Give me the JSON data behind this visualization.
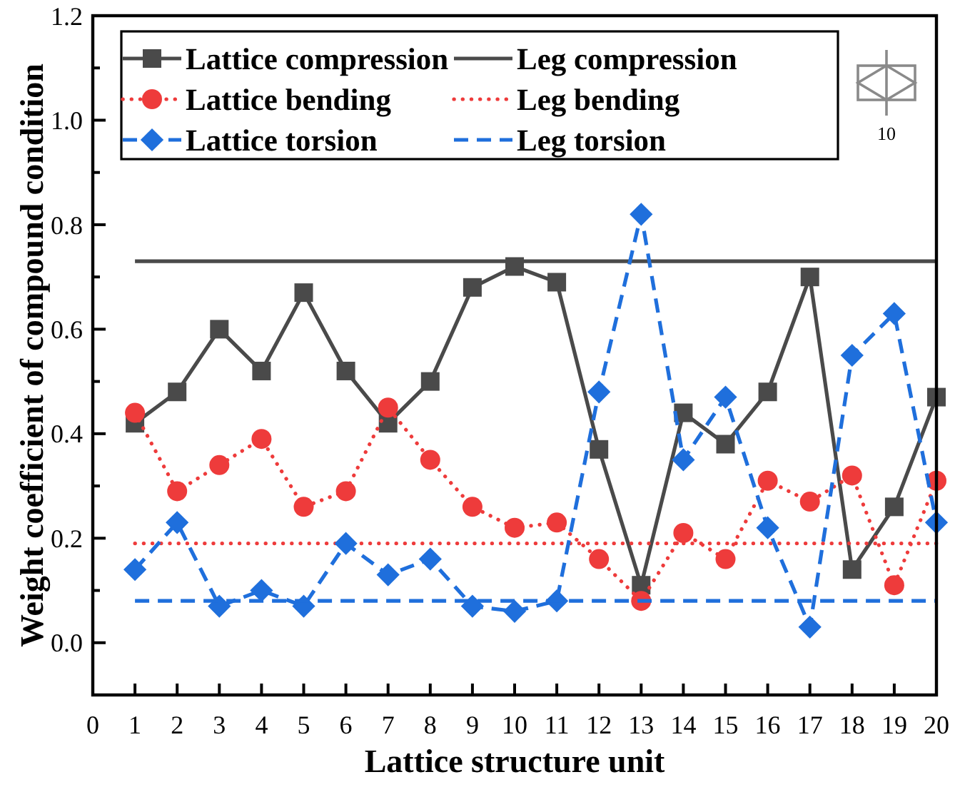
{
  "chart_data": {
    "type": "line",
    "xlabel": "Lattice structure unit",
    "ylabel": "Weight coefficient of compound condition",
    "annotations": [
      "10"
    ],
    "x": [
      1,
      2,
      3,
      4,
      5,
      6,
      7,
      8,
      9,
      10,
      11,
      12,
      13,
      14,
      15,
      16,
      17,
      18,
      19,
      20
    ],
    "xlim": [
      0,
      20
    ],
    "xticks": [
      0,
      1,
      2,
      3,
      4,
      5,
      6,
      7,
      8,
      9,
      10,
      11,
      12,
      13,
      14,
      15,
      16,
      17,
      18,
      19,
      20
    ],
    "ylim": [
      -0.1,
      1.2
    ],
    "yticks": [
      {
        "value": 0,
        "label": "0.0"
      },
      {
        "value": 0.1,
        "label": null
      },
      0.2,
      {
        "value": 0.3,
        "label": null
      },
      0.4,
      {
        "value": 0.5,
        "label": null
      },
      0.6,
      {
        "value": 0.7,
        "label": null
      },
      0.8,
      {
        "value": 0.9,
        "label": null
      },
      {
        "value": 1,
        "label": "1.0"
      },
      {
        "value": 1.1,
        "label": null
      },
      1.2
    ],
    "legend": "top left",
    "series": [
      {
        "name": "Lattice compression",
        "color": "#4a4a4a",
        "marker": "square",
        "line_style": "solid",
        "values": [
          0.42,
          0.48,
          0.6,
          0.52,
          0.67,
          0.52,
          0.42,
          0.5,
          0.68,
          0.72,
          0.69,
          0.37,
          0.11,
          0.44,
          0.38,
          0.48,
          0.7,
          0.14,
          0.26,
          0.47
        ]
      },
      {
        "name": "Leg compression",
        "color": "#4a4a4a",
        "marker": "none",
        "line_style": "solid",
        "values": [
          0.73,
          0.73,
          0.73,
          0.73,
          0.73,
          0.73,
          0.73,
          0.73,
          0.73,
          0.73,
          0.73,
          0.73,
          0.73,
          0.73,
          0.73,
          0.73,
          0.73,
          0.73,
          0.73,
          0.73
        ]
      },
      {
        "name": "Lattice bending",
        "color": "#ee3b3b",
        "marker": "circle",
        "line_style": "dotted",
        "values": [
          0.44,
          0.29,
          0.34,
          0.39,
          0.26,
          0.29,
          0.45,
          0.35,
          0.26,
          0.22,
          0.23,
          0.16,
          0.08,
          0.21,
          0.16,
          0.31,
          0.27,
          0.32,
          0.11,
          0.31
        ]
      },
      {
        "name": "Leg bending",
        "color": "#ee3b3b",
        "marker": "none",
        "line_style": "dotted",
        "values": [
          0.19,
          0.19,
          0.19,
          0.19,
          0.19,
          0.19,
          0.19,
          0.19,
          0.19,
          0.19,
          0.19,
          0.19,
          0.19,
          0.19,
          0.19,
          0.19,
          0.19,
          0.19,
          0.19,
          0.19
        ]
      },
      {
        "name": "Lattice torsion",
        "color": "#1f6fdc",
        "marker": "diamond",
        "line_style": "dashed",
        "values": [
          0.14,
          0.23,
          0.07,
          0.1,
          0.07,
          0.19,
          0.13,
          0.16,
          0.07,
          0.06,
          0.08,
          0.48,
          0.82,
          0.35,
          0.47,
          0.22,
          0.03,
          0.55,
          0.63,
          0.23
        ]
      },
      {
        "name": "Leg torsion",
        "color": "#1f6fdc",
        "marker": "none",
        "line_style": "dashed",
        "values": [
          0.08,
          0.08,
          0.08,
          0.08,
          0.08,
          0.08,
          0.08,
          0.08,
          0.08,
          0.08,
          0.08,
          0.08,
          0.08,
          0.08,
          0.08,
          0.08,
          0.08,
          0.08,
          0.08,
          0.08
        ]
      }
    ]
  }
}
